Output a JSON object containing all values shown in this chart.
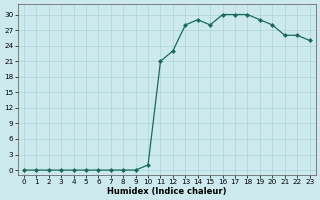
{
  "xlabel": "Humidex (Indice chaleur)",
  "ylabel": "",
  "x_values": [
    0,
    1,
    2,
    3,
    4,
    5,
    6,
    7,
    8,
    9,
    10,
    11,
    12,
    13,
    14,
    15,
    16,
    17,
    18,
    19,
    20,
    21,
    22,
    23
  ],
  "y_values": [
    0,
    0,
    0,
    0,
    0,
    0,
    0,
    0,
    0,
    0,
    1,
    21,
    23,
    28,
    29,
    28,
    30,
    30,
    30,
    29,
    28,
    26,
    26,
    25
  ],
  "line_color": "#1a6b5a",
  "marker": "D",
  "marker_size": 2.0,
  "background_color": "#cceaed",
  "grid_color": "#afd4d8",
  "ylim": [
    -1,
    32
  ],
  "xlim": [
    -0.5,
    23.5
  ],
  "yticks": [
    0,
    3,
    6,
    9,
    12,
    15,
    18,
    21,
    24,
    27,
    30
  ],
  "xticks": [
    0,
    1,
    2,
    3,
    4,
    5,
    6,
    7,
    8,
    9,
    10,
    11,
    12,
    13,
    14,
    15,
    16,
    17,
    18,
    19,
    20,
    21,
    22,
    23
  ],
  "tick_fontsize": 5.2,
  "label_fontsize": 6,
  "linewidth": 0.9
}
